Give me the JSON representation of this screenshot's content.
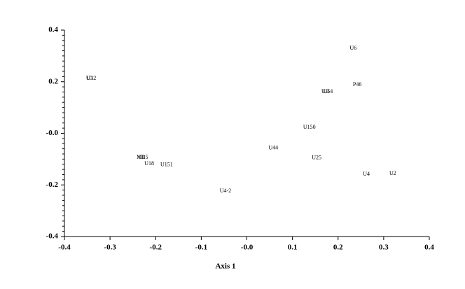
{
  "chart_data": {
    "type": "scatter",
    "xlabel": "Axis 1",
    "xlim": [
      -0.4,
      0.4
    ],
    "xticks": [
      -0.4,
      -0.3,
      -0.2,
      -0.1,
      {
        "value": 0,
        "label": "-0.0"
      },
      0.1,
      0.2,
      0.3,
      0.4
    ],
    "ylim": [
      -0.4,
      0.4
    ],
    "yticks": [
      -0.4,
      -0.2,
      {
        "value": 0,
        "label": "-0.0"
      },
      0.2,
      0.4
    ],
    "points": [
      {
        "label": "U6",
        "x": 0.233,
        "y": 0.329
      },
      {
        "label": "U3",
        "x": -0.345,
        "y": 0.213
      },
      {
        "label": "U12",
        "x": -0.341,
        "y": 0.213
      },
      {
        "label": "UB",
        "x": 0.172,
        "y": 0.161
      },
      {
        "label": "U54",
        "x": 0.178,
        "y": 0.161
      },
      {
        "label": "P46",
        "x": 0.242,
        "y": 0.188
      },
      {
        "label": "U150",
        "x": 0.137,
        "y": 0.023
      },
      {
        "label": "U44",
        "x": 0.058,
        "y": -0.058
      },
      {
        "label": "U25",
        "x": 0.153,
        "y": -0.096
      },
      {
        "label": "U4",
        "x": 0.262,
        "y": -0.159
      },
      {
        "label": "U2",
        "x": 0.32,
        "y": -0.156
      },
      {
        "label": "MB",
        "x": -0.232,
        "y": -0.094
      },
      {
        "label": "U15",
        "x": -0.227,
        "y": -0.094
      },
      {
        "label": "U18",
        "x": -0.214,
        "y": -0.118
      },
      {
        "label": "U151",
        "x": -0.176,
        "y": -0.123
      },
      {
        "label": "U4-2",
        "x": -0.047,
        "y": -0.224
      }
    ]
  }
}
